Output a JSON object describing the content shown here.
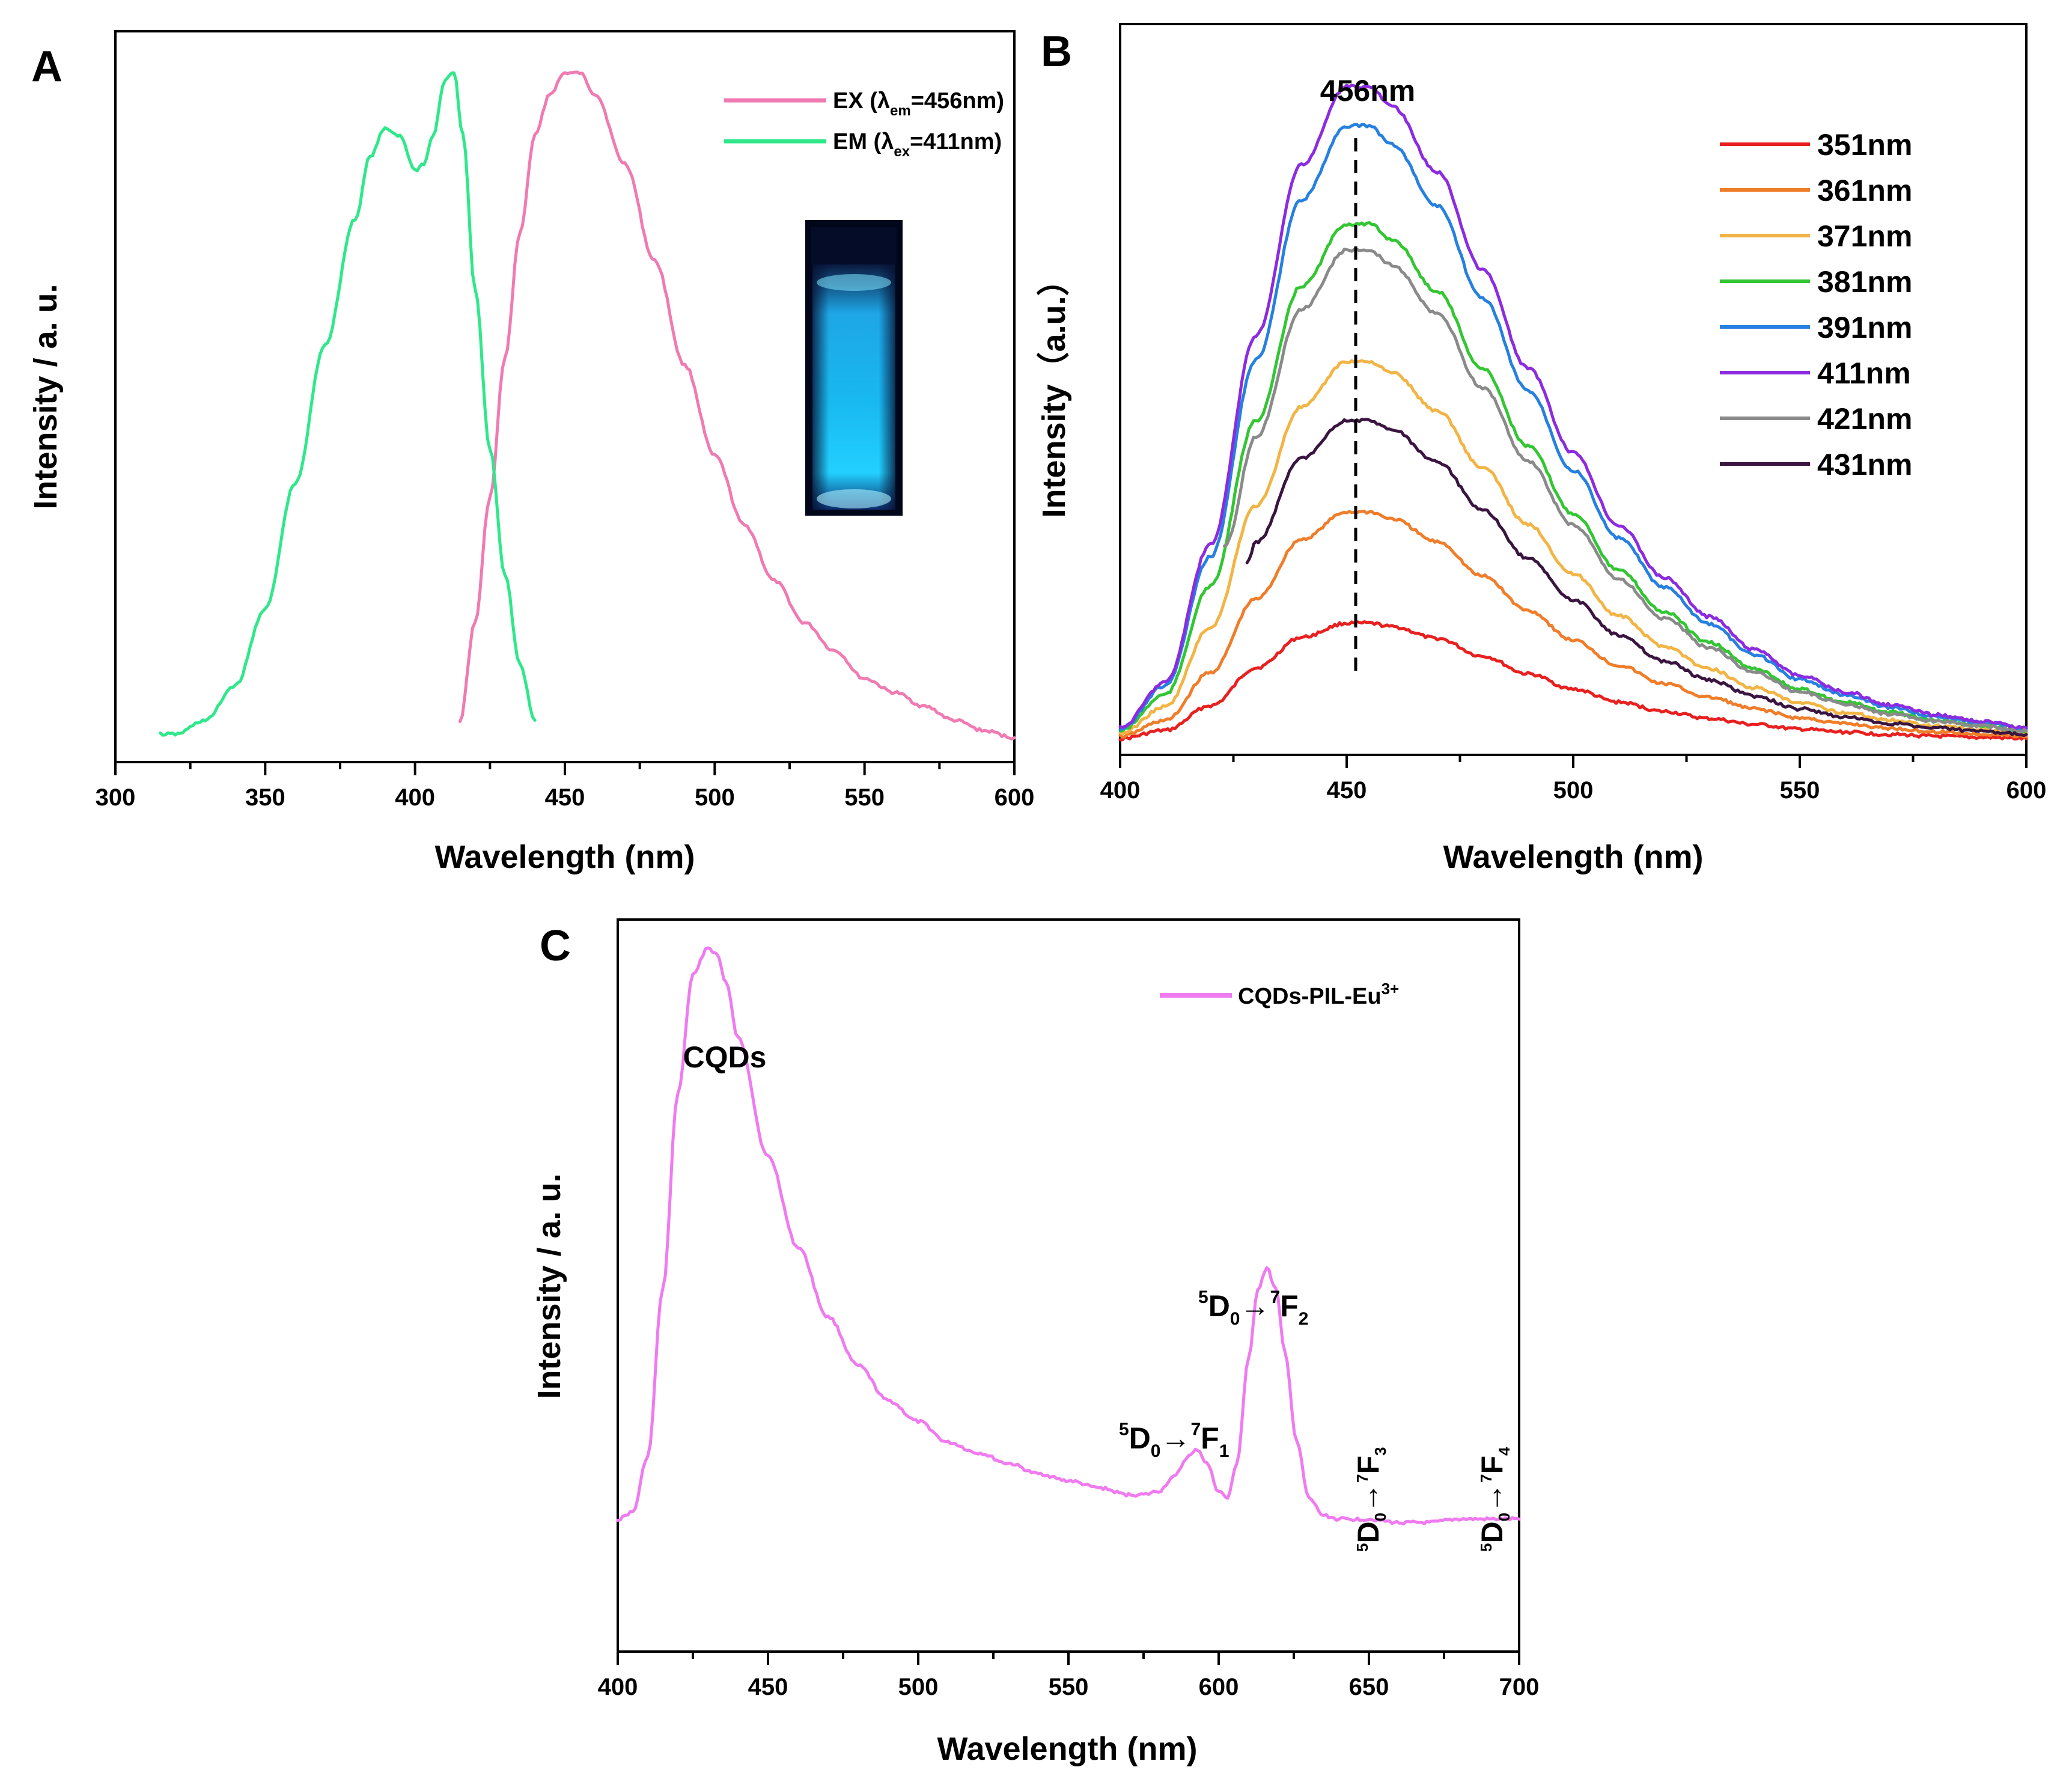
{
  "chart_data": [
    {
      "panel": "A",
      "type": "line",
      "xlabel": "Wavelength (nm)",
      "ylabel": "Intensity / a. u.",
      "xlim": [
        300,
        600
      ],
      "ylim": [
        0,
        1.05
      ],
      "xticks": [
        "300",
        "350",
        "400",
        "450",
        "500",
        "550",
        "600"
      ],
      "legend": [
        {
          "label": "EX (λem=456nm)",
          "parts": [
            "EX (λ",
            "em",
            "=456nm)"
          ],
          "color": "#f07ab2"
        },
        {
          "label": "EM (λex=411nm)",
          "parts": [
            "EM (λ",
            "ex",
            "=411nm)"
          ],
          "color": "#2ee88a"
        }
      ],
      "inset": "cuvette-photo",
      "series": [
        {
          "name": "EX (λem=456nm)",
          "color": "#f07ab2",
          "x": [
            415,
            420,
            425,
            430,
            435,
            440,
            445,
            450,
            455,
            460,
            470,
            480,
            490,
            500,
            510,
            520,
            530,
            540,
            550,
            560,
            570,
            580,
            590,
            600
          ],
          "y": [
            0.06,
            0.2,
            0.38,
            0.58,
            0.76,
            0.9,
            0.96,
            0.99,
            0.99,
            0.96,
            0.86,
            0.72,
            0.57,
            0.44,
            0.34,
            0.26,
            0.2,
            0.16,
            0.12,
            0.1,
            0.08,
            0.06,
            0.045,
            0.035
          ]
        },
        {
          "name": "EM (λex=411nm)",
          "color": "#2ee88a",
          "x": [
            315,
            320,
            330,
            340,
            350,
            360,
            370,
            380,
            385,
            390,
            395,
            400,
            403,
            406,
            410,
            413,
            416,
            420,
            425,
            430,
            435,
            440
          ],
          "y": [
            0.04,
            0.04,
            0.06,
            0.11,
            0.22,
            0.4,
            0.6,
            0.78,
            0.87,
            0.91,
            0.9,
            0.85,
            0.86,
            0.9,
            0.98,
            0.99,
            0.9,
            0.68,
            0.45,
            0.27,
            0.14,
            0.06
          ]
        }
      ]
    },
    {
      "panel": "B",
      "type": "line",
      "xlabel": "Wavelength (nm)",
      "ylabel": "Intensity（a.u.）",
      "xlim": [
        400,
        600
      ],
      "ylim": [
        0,
        1.05
      ],
      "xticks": [
        "400",
        "450",
        "500",
        "550",
        "600"
      ],
      "annotation": {
        "text": "456nm",
        "x": 452
      },
      "x": [
        400,
        410,
        420,
        430,
        440,
        450,
        455,
        460,
        470,
        480,
        490,
        500,
        510,
        520,
        530,
        540,
        550,
        560,
        570,
        580,
        590,
        600
      ],
      "shape": [
        0.02,
        0.09,
        0.3,
        0.62,
        0.88,
        1.0,
        1.0,
        0.97,
        0.87,
        0.72,
        0.57,
        0.44,
        0.33,
        0.25,
        0.19,
        0.14,
        0.1,
        0.075,
        0.055,
        0.04,
        0.03,
        0.02
      ],
      "series": [
        {
          "name": "351nm",
          "color": "#e8201f",
          "peak": 0.18,
          "x_start": 400
        },
        {
          "name": "361nm",
          "color": "#f07d2a",
          "peak": 0.35,
          "x_start": 400
        },
        {
          "name": "371nm",
          "color": "#f2b444",
          "peak": 0.58,
          "x_start": 400
        },
        {
          "name": "381nm",
          "color": "#33c633",
          "peak": 0.79,
          "x_start": 400
        },
        {
          "name": "391nm",
          "color": "#2680e0",
          "peak": 0.94,
          "x_start": 400
        },
        {
          "name": "411nm",
          "color": "#8c2be0",
          "peak": 1.0,
          "x_start": 400
        },
        {
          "name": "421nm",
          "color": "#8a8a8a",
          "peak": 0.75,
          "x_start": 423
        },
        {
          "name": "431nm",
          "color": "#3a1540",
          "peak": 0.49,
          "x_start": 428
        }
      ]
    },
    {
      "panel": "C",
      "type": "line",
      "xlabel": "Wavelength (nm)",
      "ylabel": "Intensity / a. u.",
      "xlim": [
        400,
        700
      ],
      "ylim": [
        0,
        1.05
      ],
      "xticks": [
        "400",
        "450",
        "500",
        "550",
        "600",
        "650",
        "700"
      ],
      "legend": [
        {
          "label": "CQDs-PIL-Eu3+",
          "parts": [
            "CQDs-PIL-Eu",
            "3+"
          ],
          "color": "#f07af0"
        }
      ],
      "annotations": [
        {
          "id": "cqds",
          "text": "CQDs"
        },
        {
          "id": "f1",
          "text": "5D0→7F1"
        },
        {
          "id": "f2",
          "text": "5D0→7F2"
        },
        {
          "id": "f3",
          "text": "5D0→7F3"
        },
        {
          "id": "f4",
          "text": "5D0→7F4"
        }
      ],
      "series": [
        {
          "name": "CQDs-PIL-Eu3+",
          "color": "#f07af0",
          "x": [
            400,
            405,
            410,
            415,
            420,
            425,
            430,
            433,
            436,
            440,
            450,
            460,
            470,
            480,
            490,
            500,
            510,
            520,
            530,
            540,
            550,
            560,
            570,
            575,
            580,
            585,
            590,
            593,
            596,
            600,
            603,
            606,
            610,
            613,
            616,
            619,
            622,
            626,
            630,
            635,
            640,
            650,
            660,
            670,
            680,
            690,
            700
          ],
          "y": [
            0.19,
            0.2,
            0.28,
            0.52,
            0.8,
            0.97,
            1.01,
            1.0,
            0.96,
            0.88,
            0.71,
            0.58,
            0.48,
            0.41,
            0.36,
            0.33,
            0.3,
            0.285,
            0.27,
            0.255,
            0.245,
            0.235,
            0.225,
            0.225,
            0.23,
            0.25,
            0.28,
            0.29,
            0.27,
            0.23,
            0.22,
            0.27,
            0.42,
            0.52,
            0.55,
            0.52,
            0.43,
            0.3,
            0.22,
            0.195,
            0.19,
            0.19,
            0.185,
            0.185,
            0.19,
            0.19,
            0.19
          ]
        }
      ]
    }
  ],
  "panels": {
    "a": "A",
    "b": "B",
    "c": "C"
  }
}
